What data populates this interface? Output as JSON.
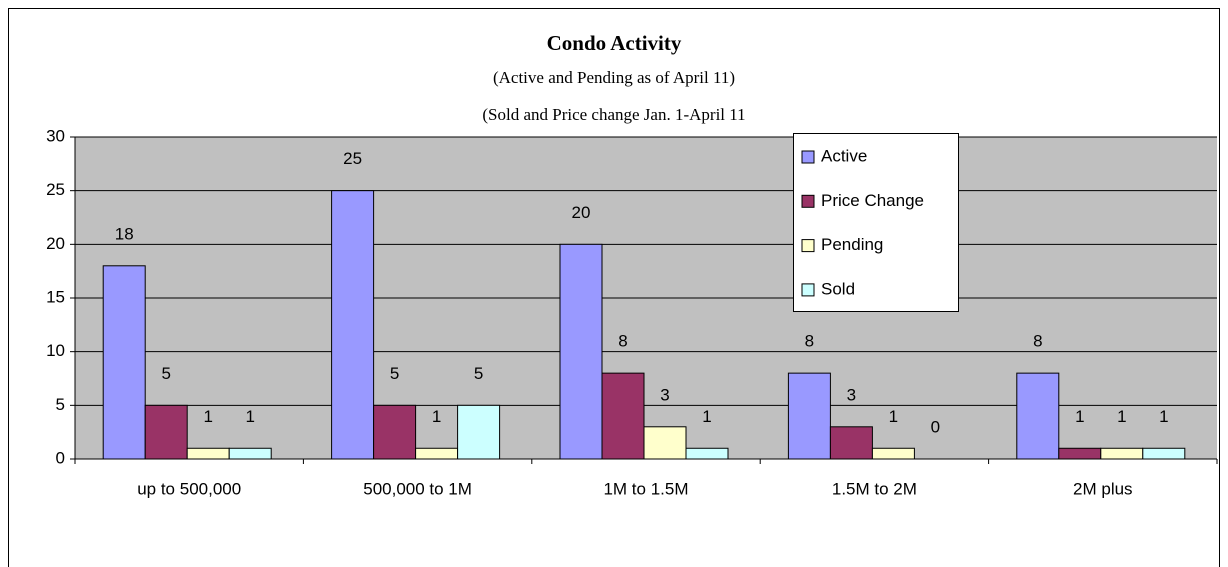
{
  "chart_data": {
    "type": "bar",
    "title": "Condo Activity",
    "subtitles": [
      "(Active and Pending as of April 11)",
      "(Sold and Price change Jan. 1-April 11"
    ],
    "categories": [
      "up to 500,000",
      "500,000 to 1M",
      "1M to 1.5M",
      "1.5M to 2M",
      "2M plus"
    ],
    "series": [
      {
        "name": "Active",
        "color": "#9999ff",
        "values": [
          18,
          25,
          20,
          8,
          8
        ]
      },
      {
        "name": "Price Change",
        "color": "#993366",
        "values": [
          5,
          5,
          8,
          3,
          1
        ]
      },
      {
        "name": "Pending",
        "color": "#ffffcc",
        "values": [
          1,
          1,
          3,
          1,
          1
        ]
      },
      {
        "name": "Sold",
        "color": "#ccffff",
        "values": [
          1,
          5,
          1,
          0,
          1
        ]
      }
    ],
    "ylim": [
      0,
      30
    ],
    "yticks": [
      0,
      5,
      10,
      15,
      20,
      25,
      30
    ],
    "grid": true
  }
}
